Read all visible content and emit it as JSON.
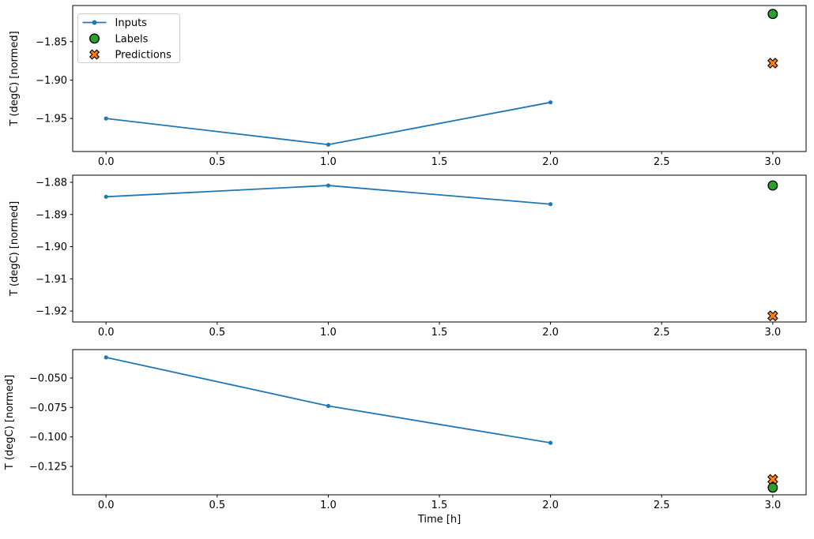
{
  "figure": {
    "background": "#ffffff",
    "text_color": "#000000",
    "spine_color": "#000000",
    "xlabel": "Time [h]",
    "ylabel": "T (degC) [normed]",
    "legend": {
      "position": "upper-left",
      "border_color": "#cccccc",
      "fill_color": "#ffffff",
      "items": [
        {
          "label": "Inputs",
          "marker": "line-dot",
          "color": "#1f77b4"
        },
        {
          "label": "Labels",
          "marker": "circle",
          "color": "#2ca02c"
        },
        {
          "label": "Predictions",
          "marker": "X",
          "color": "#ff7f0e"
        }
      ]
    }
  },
  "chart_data": [
    {
      "type": "line",
      "title": "",
      "xlabel": "",
      "ylabel": "T (degC) [normed]",
      "grid": false,
      "legend_visible": true,
      "xlim": [
        -0.15,
        3.15
      ],
      "ylim": [
        -1.993,
        -1.803
      ],
      "xticks": [
        0.0,
        0.5,
        1.0,
        1.5,
        2.0,
        2.5,
        3.0
      ],
      "xtick_labels": [
        "0.0",
        "0.5",
        "1.0",
        "1.5",
        "2.0",
        "2.5",
        "3.0"
      ],
      "yticks": [
        -1.85,
        -1.9,
        -1.95
      ],
      "ytick_labels": [
        "−1.85",
        "−1.90",
        "−1.95"
      ],
      "series": [
        {
          "name": "Inputs",
          "type": "line",
          "color": "#1f77b4",
          "x": [
            0,
            1,
            2
          ],
          "y": [
            -1.95,
            -1.984,
            -1.929
          ]
        },
        {
          "name": "Predictions",
          "type": "scatter",
          "marker": "X",
          "color": "#ff7f0e",
          "edge_color": "#000000",
          "x": [
            3
          ],
          "y": [
            -1.878
          ]
        },
        {
          "name": "Labels",
          "type": "scatter",
          "marker": "circle",
          "color": "#2ca02c",
          "edge_color": "#000000",
          "x": [
            3
          ],
          "y": [
            -1.814
          ]
        }
      ]
    },
    {
      "type": "line",
      "title": "",
      "xlabel": "",
      "ylabel": "T (degC) [normed]",
      "grid": false,
      "legend_visible": false,
      "xlim": [
        -0.15,
        3.15
      ],
      "ylim": [
        -1.9234,
        -1.8778
      ],
      "xticks": [
        0.0,
        0.5,
        1.0,
        1.5,
        2.0,
        2.5,
        3.0
      ],
      "xtick_labels": [
        "0.0",
        "0.5",
        "1.0",
        "1.5",
        "2.0",
        "2.5",
        "3.0"
      ],
      "yticks": [
        -1.88,
        -1.89,
        -1.9,
        -1.91,
        -1.92
      ],
      "ytick_labels": [
        "−1.88",
        "−1.89",
        "−1.90",
        "−1.91",
        "−1.92"
      ],
      "series": [
        {
          "name": "Inputs",
          "type": "line",
          "color": "#1f77b4",
          "x": [
            0,
            1,
            2
          ],
          "y": [
            -1.8845,
            -1.881,
            -1.8868
          ]
        },
        {
          "name": "Predictions",
          "type": "scatter",
          "marker": "X",
          "color": "#ff7f0e",
          "edge_color": "#000000",
          "x": [
            3
          ],
          "y": [
            -1.9215
          ]
        },
        {
          "name": "Labels",
          "type": "scatter",
          "marker": "circle",
          "color": "#2ca02c",
          "edge_color": "#000000",
          "x": [
            3
          ],
          "y": [
            -1.881
          ]
        }
      ]
    },
    {
      "type": "line",
      "title": "",
      "xlabel": "Time [h]",
      "ylabel": "T (degC) [normed]",
      "grid": false,
      "legend_visible": false,
      "xlim": [
        -0.15,
        3.15
      ],
      "ylim": [
        -0.1491,
        -0.0259
      ],
      "xticks": [
        0.0,
        0.5,
        1.0,
        1.5,
        2.0,
        2.5,
        3.0
      ],
      "xtick_labels": [
        "0.0",
        "0.5",
        "1.0",
        "1.5",
        "2.0",
        "2.5",
        "3.0"
      ],
      "yticks": [
        -0.05,
        -0.075,
        -0.1,
        -0.125
      ],
      "ytick_labels": [
        "−0.050",
        "−0.075",
        "−0.100",
        "−0.125"
      ],
      "series": [
        {
          "name": "Inputs",
          "type": "line",
          "color": "#1f77b4",
          "x": [
            0,
            1,
            2
          ],
          "y": [
            -0.0325,
            -0.0737,
            -0.105
          ]
        },
        {
          "name": "Predictions",
          "type": "scatter",
          "marker": "X",
          "color": "#ff7f0e",
          "edge_color": "#000000",
          "x": [
            3
          ],
          "y": [
            -0.136
          ]
        },
        {
          "name": "Labels",
          "type": "scatter",
          "marker": "circle",
          "color": "#2ca02c",
          "edge_color": "#000000",
          "x": [
            3
          ],
          "y": [
            -0.143
          ]
        }
      ]
    }
  ]
}
